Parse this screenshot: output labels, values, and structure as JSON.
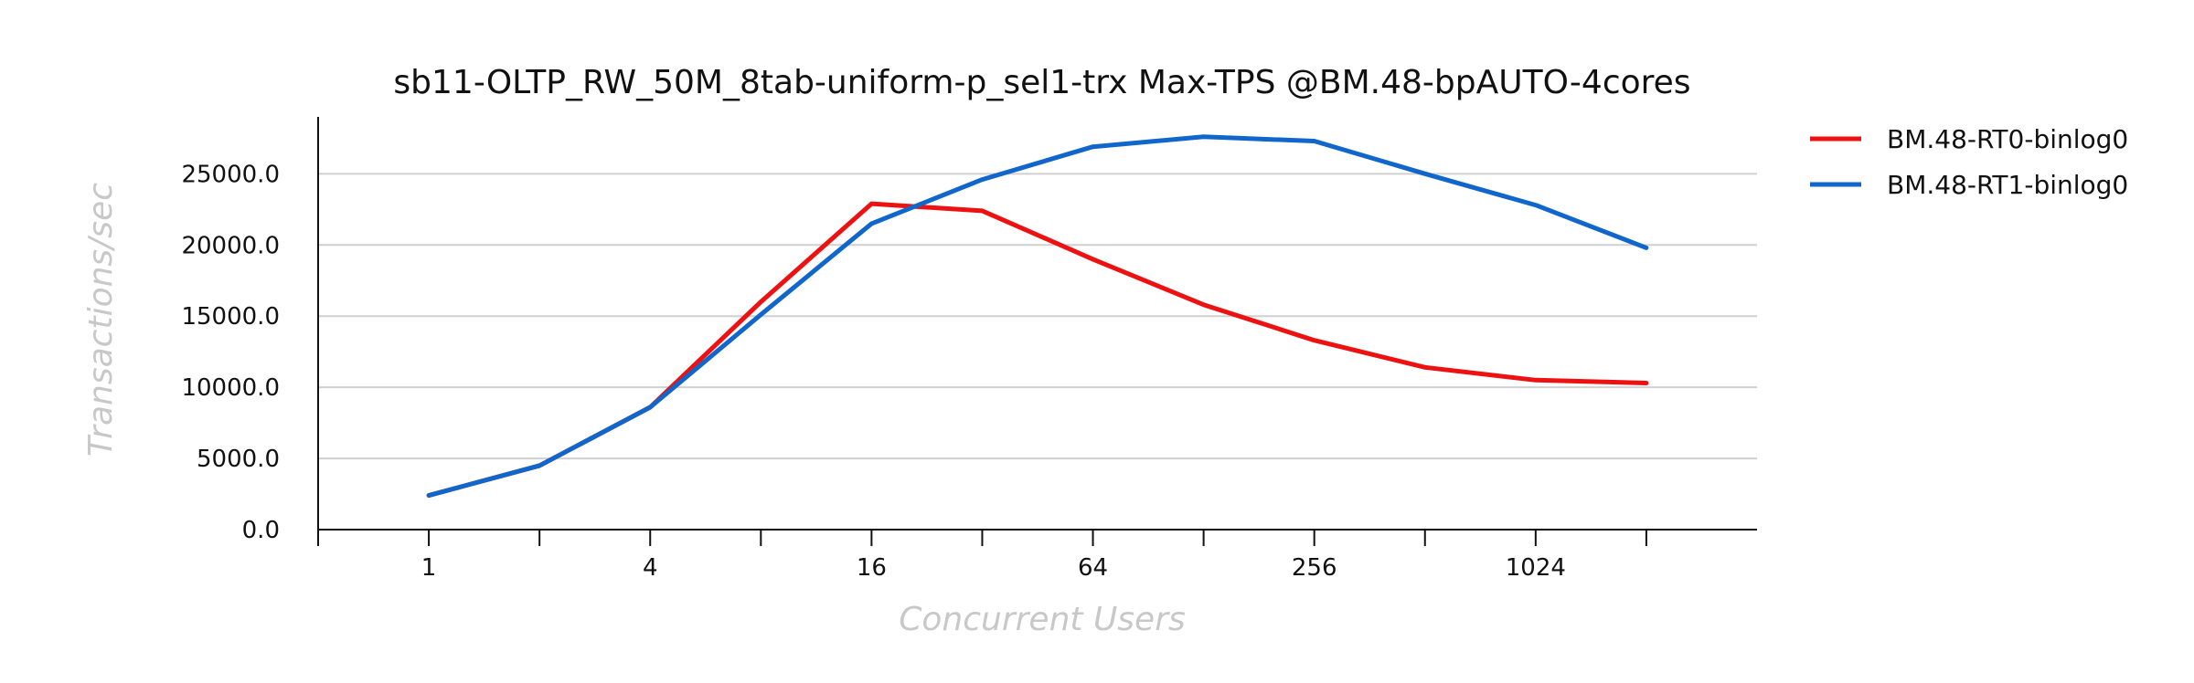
{
  "chart_data": {
    "type": "line",
    "title": "sb11-OLTP_RW_50M_8tab-uniform-p_sel1-trx Max-TPS @BM.48-bpAUTO-4cores",
    "xlabel": "Concurrent Users",
    "ylabel": "Transactions/sec",
    "x_scale": "log2",
    "x": [
      1,
      2,
      4,
      8,
      16,
      32,
      64,
      128,
      256,
      512,
      1024,
      2048
    ],
    "x_tick_values": [
      1,
      4,
      16,
      64,
      256,
      1024
    ],
    "x_tick_labels": [
      "1",
      "4",
      "16",
      "64",
      "256",
      "1024"
    ],
    "y_ticks": [
      0,
      5000,
      10000,
      15000,
      20000,
      25000
    ],
    "y_tick_labels": [
      "0.0",
      "5000.0",
      "10000.0",
      "15000.0",
      "20000.0",
      "25000.0"
    ],
    "ylim": [
      0,
      29000
    ],
    "grid": "horizontal",
    "legend_position": "outside-right",
    "series": [
      {
        "name": "BM.48-RT0-binlog0",
        "color": "#ee1111",
        "values": [
          2400,
          4500,
          8600,
          16000,
          22900,
          22400,
          19000,
          15800,
          13300,
          11400,
          10500,
          10300
        ]
      },
      {
        "name": "BM.48-RT1-binlog0",
        "color": "#1166cc",
        "values": [
          2400,
          4500,
          8600,
          15100,
          21500,
          24600,
          26900,
          27600,
          27300,
          25000,
          22800,
          19800
        ]
      }
    ]
  }
}
